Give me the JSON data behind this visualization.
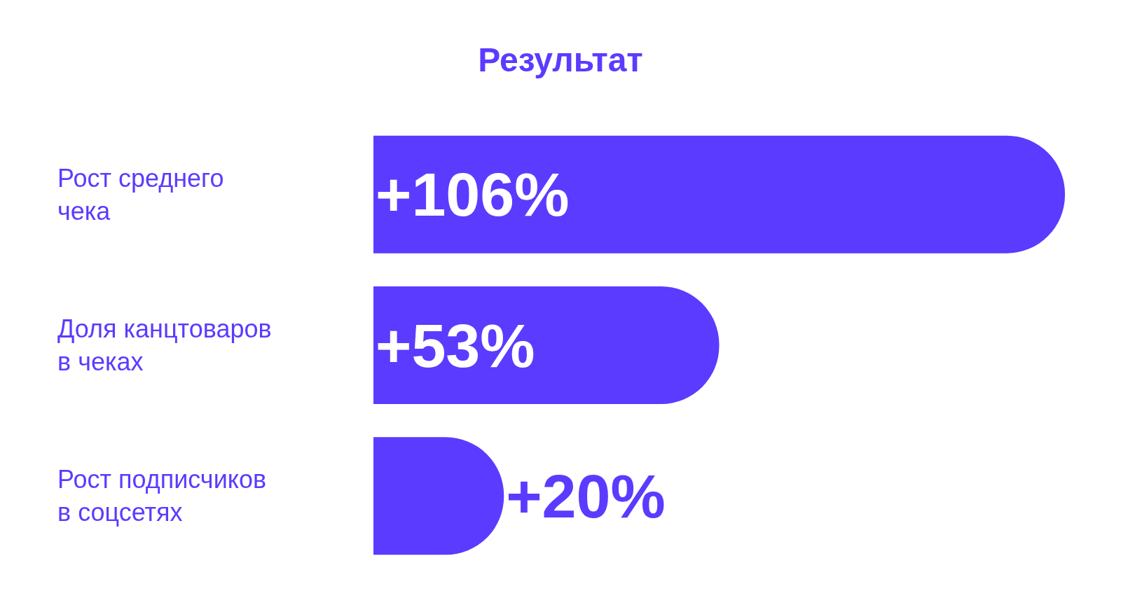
{
  "chart_data": {
    "type": "bar",
    "orientation": "horizontal",
    "title": "Результат",
    "categories": [
      "Рост среднего\nчека",
      "Доля канцтоваров\nв чеках",
      "Рост подписчиков\nв соцсетях"
    ],
    "values": [
      106,
      53,
      20
    ],
    "value_labels": [
      "+106%",
      "+53%",
      "+20%"
    ],
    "color": "#5b3bff"
  }
}
